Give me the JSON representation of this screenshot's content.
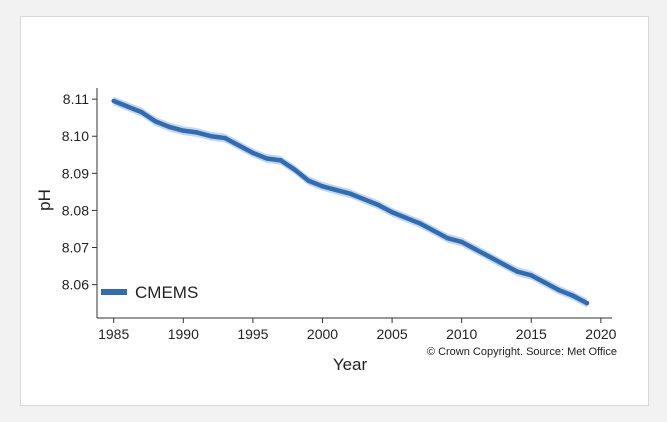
{
  "chart_data": {
    "type": "line",
    "title": "",
    "xlabel": "Year",
    "ylabel": "pH",
    "xlim": [
      1983.8,
      2020.8
    ],
    "ylim": [
      8.051,
      8.113
    ],
    "xticks": [
      1985,
      1990,
      1995,
      2000,
      2005,
      2010,
      2015,
      2020
    ],
    "yticks": [
      8.06,
      8.07,
      8.08,
      8.09,
      8.1,
      8.11
    ],
    "ytick_labels": [
      "8.06",
      "8.07",
      "8.08",
      "8.09",
      "8.10",
      "8.11"
    ],
    "grid": false,
    "legend_position": "bottom-left",
    "series": [
      {
        "name": "CMEMS",
        "color": "#2e6db4",
        "band_color": "#c3d7ee",
        "band_half_width": 0.0012,
        "x": [
          1985,
          1986,
          1987,
          1988,
          1989,
          1990,
          1991,
          1992,
          1993,
          1994,
          1995,
          1996,
          1997,
          1998,
          1999,
          2000,
          2001,
          2002,
          2003,
          2004,
          2005,
          2006,
          2007,
          2008,
          2009,
          2010,
          2011,
          2012,
          2013,
          2014,
          2015,
          2016,
          2017,
          2018,
          2019
        ],
        "y": [
          8.1095,
          8.108,
          8.1065,
          8.104,
          8.1025,
          8.1015,
          8.101,
          8.1,
          8.0995,
          8.0975,
          8.0955,
          8.094,
          8.0935,
          8.091,
          8.088,
          8.0865,
          8.0855,
          8.0845,
          8.083,
          8.0815,
          8.0795,
          8.078,
          8.0765,
          8.0745,
          8.0725,
          8.0715,
          8.0695,
          8.0675,
          8.0655,
          8.0635,
          8.0625,
          8.0605,
          8.0585,
          8.057,
          8.055
        ]
      }
    ],
    "annotation": "© Crown Copyright. Source: Met Office"
  }
}
